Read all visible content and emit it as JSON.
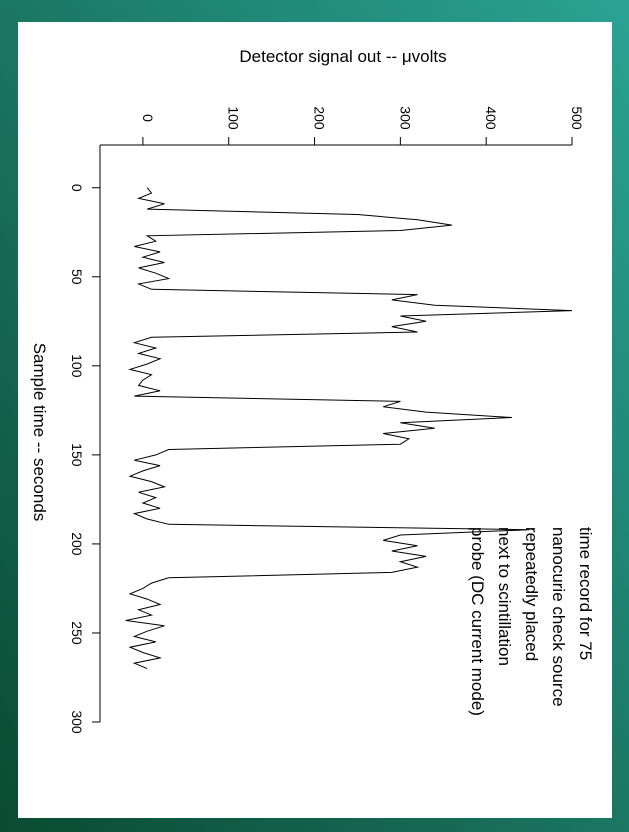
{
  "chart_data": {
    "type": "line",
    "title": "Detector signal out -- μvolts",
    "x_label": "Sample time -- seconds",
    "annotation": [
      "time record for 75",
      "nanocurie check source",
      "repeatedly placed",
      "next to scintillation",
      "probe (DC current mode)"
    ],
    "x": [
      0,
      3,
      6,
      9,
      12,
      15,
      18,
      21,
      24,
      27,
      30,
      33,
      36,
      39,
      42,
      45,
      48,
      51,
      54,
      57,
      60,
      63,
      66,
      69,
      72,
      75,
      78,
      81,
      84,
      87,
      90,
      93,
      96,
      99,
      102,
      105,
      108,
      111,
      114,
      117,
      120,
      123,
      126,
      129,
      132,
      135,
      138,
      141,
      144,
      147,
      150,
      153,
      156,
      159,
      162,
      165,
      168,
      171,
      174,
      177,
      180,
      183,
      186,
      189,
      192,
      195,
      198,
      201,
      204,
      207,
      210,
      213,
      216,
      219,
      222,
      225,
      228,
      231,
      234,
      237,
      240,
      243,
      246,
      249,
      252,
      255,
      258,
      261,
      264,
      267,
      270
    ],
    "series": [
      {
        "color": "#000000",
        "values": [
          5,
          10,
          -5,
          25,
          5,
          250,
          320,
          360,
          300,
          5,
          15,
          -10,
          20,
          0,
          25,
          -5,
          15,
          30,
          -5,
          10,
          320,
          290,
          340,
          500,
          300,
          330,
          290,
          320,
          10,
          -10,
          15,
          -5,
          20,
          5,
          -15,
          10,
          0,
          -5,
          20,
          -10,
          300,
          280,
          330,
          430,
          300,
          340,
          280,
          310,
          300,
          30,
          15,
          -10,
          20,
          0,
          -15,
          10,
          25,
          -5,
          15,
          0,
          20,
          -10,
          5,
          30,
          450,
          300,
          280,
          320,
          290,
          330,
          300,
          320,
          290,
          30,
          10,
          0,
          -15,
          5,
          20,
          -5,
          10,
          -20,
          25,
          5,
          -10,
          15,
          -15,
          0,
          20,
          -10,
          5
        ]
      }
    ],
    "xlim": [
      -24,
      300
    ],
    "xticks": [
      0,
      50,
      100,
      150,
      200,
      250,
      300
    ],
    "ylim": [
      -50,
      500
    ],
    "yticks": [
      0,
      100,
      200,
      300,
      400,
      500
    ]
  }
}
